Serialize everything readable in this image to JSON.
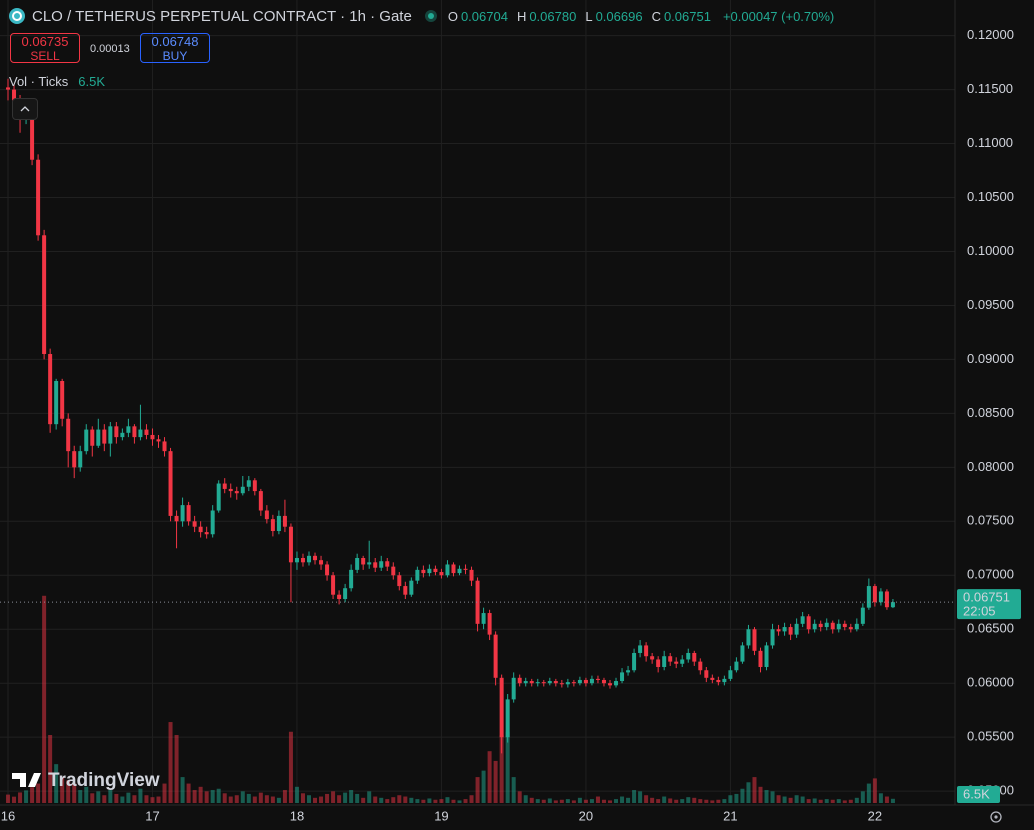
{
  "chart_data": {
    "type": "candlestick",
    "title": "CLO / TETHERUS PERPETUAL CONTRACT · 1h · Gate",
    "up_color": "#22ab94",
    "down_color": "#f23645",
    "grid": true,
    "ylim": [
      0.0489,
      0.1233
    ],
    "yticks": [
      {
        "value": 0.12,
        "label": "0.12000"
      },
      {
        "value": 0.115,
        "label": "0.11500"
      },
      {
        "value": 0.11,
        "label": "0.11000"
      },
      {
        "value": 0.105,
        "label": "0.10500"
      },
      {
        "value": 0.1,
        "label": "0.10000"
      },
      {
        "value": 0.095,
        "label": "0.09500"
      },
      {
        "value": 0.09,
        "label": "0.09000"
      },
      {
        "value": 0.085,
        "label": "0.08500"
      },
      {
        "value": 0.08,
        "label": "0.08000"
      },
      {
        "value": 0.075,
        "label": "0.07500"
      },
      {
        "value": 0.07,
        "label": "0.07000"
      },
      {
        "value": 0.065,
        "label": "0.06500"
      },
      {
        "value": 0.06,
        "label": "0.06000"
      },
      {
        "value": 0.055,
        "label": "0.05500"
      },
      {
        "value": 0.05,
        "label": "0.05000"
      }
    ],
    "xticks": [
      {
        "value": 0,
        "label": "16"
      },
      {
        "value": 24,
        "label": "17"
      },
      {
        "value": 48,
        "label": "18"
      },
      {
        "value": 72,
        "label": "19"
      },
      {
        "value": 96,
        "label": "20"
      },
      {
        "value": 120,
        "label": "21"
      },
      {
        "value": 144,
        "label": "22"
      }
    ],
    "open": [
      0.1152,
      0.115,
      0.114,
      0.1128,
      0.113,
      0.1085,
      0.1015,
      0.0905,
      0.084,
      0.088,
      0.0845,
      0.0815,
      0.08,
      0.0815,
      0.0835,
      0.082,
      0.0835,
      0.0822,
      0.0838,
      0.0828,
      0.0832,
      0.0838,
      0.0828,
      0.0835,
      0.083,
      0.0826,
      0.0824,
      0.0815,
      0.0755,
      0.075,
      0.0765,
      0.075,
      0.0745,
      0.074,
      0.0738,
      0.076,
      0.0785,
      0.078,
      0.0778,
      0.0776,
      0.0782,
      0.0788,
      0.0778,
      0.076,
      0.0752,
      0.0741,
      0.0755,
      0.0745,
      0.0712,
      0.0716,
      0.0712,
      0.0718,
      0.0714,
      0.071,
      0.07,
      0.0682,
      0.0678,
      0.0688,
      0.0705,
      0.0716,
      0.071,
      0.0712,
      0.0707,
      0.0713,
      0.0708,
      0.07,
      0.069,
      0.0682,
      0.0695,
      0.0705,
      0.0702,
      0.0706,
      0.0703,
      0.07,
      0.071,
      0.0702,
      0.0706,
      0.0705,
      0.0695,
      0.0655,
      0.0665,
      0.0645,
      0.0605,
      0.055,
      0.0585,
      0.0605,
      0.06,
      0.0602,
      0.06,
      0.0601,
      0.06,
      0.0602,
      0.06,
      0.0599,
      0.0601,
      0.06,
      0.0603,
      0.06,
      0.0604,
      0.0603,
      0.06,
      0.0598,
      0.0602,
      0.061,
      0.0612,
      0.0628,
      0.0635,
      0.0625,
      0.0622,
      0.0615,
      0.0625,
      0.062,
      0.0618,
      0.0622,
      0.0628,
      0.062,
      0.0612,
      0.0605,
      0.0603,
      0.0601,
      0.0604,
      0.0612,
      0.062,
      0.0635,
      0.065,
      0.063,
      0.0615,
      0.0635,
      0.065,
      0.0648,
      0.0652,
      0.0645,
      0.0655,
      0.0662,
      0.065,
      0.0655,
      0.0652,
      0.0656,
      0.065,
      0.0655,
      0.0652,
      0.065,
      0.0655,
      0.067,
      0.069,
      0.0675,
      0.0685,
      0.06704
    ],
    "high": [
      0.116,
      0.1155,
      0.1145,
      0.1138,
      0.1135,
      0.109,
      0.102,
      0.091,
      0.0882,
      0.0882,
      0.085,
      0.082,
      0.082,
      0.084,
      0.0838,
      0.0845,
      0.084,
      0.0842,
      0.0842,
      0.0836,
      0.0845,
      0.084,
      0.0858,
      0.084,
      0.0836,
      0.083,
      0.0828,
      0.0818,
      0.076,
      0.0772,
      0.0768,
      0.0755,
      0.075,
      0.0745,
      0.0765,
      0.0788,
      0.079,
      0.0785,
      0.0782,
      0.0792,
      0.0792,
      0.079,
      0.078,
      0.0765,
      0.0756,
      0.076,
      0.077,
      0.0748,
      0.0722,
      0.072,
      0.0722,
      0.0721,
      0.0718,
      0.0713,
      0.0703,
      0.0686,
      0.0692,
      0.071,
      0.072,
      0.0718,
      0.0732,
      0.0716,
      0.0718,
      0.0716,
      0.0712,
      0.0703,
      0.0694,
      0.0698,
      0.0708,
      0.0709,
      0.071,
      0.0709,
      0.0706,
      0.0714,
      0.0712,
      0.0709,
      0.071,
      0.0708,
      0.0698,
      0.067,
      0.0668,
      0.0648,
      0.0608,
      0.059,
      0.061,
      0.0608,
      0.0605,
      0.0604,
      0.0604,
      0.0603,
      0.0605,
      0.0604,
      0.0603,
      0.0604,
      0.0603,
      0.0606,
      0.0605,
      0.0607,
      0.0607,
      0.0605,
      0.0603,
      0.0605,
      0.0614,
      0.0616,
      0.0632,
      0.064,
      0.0638,
      0.0628,
      0.0625,
      0.063,
      0.0628,
      0.0624,
      0.0626,
      0.0632,
      0.063,
      0.0623,
      0.0615,
      0.0608,
      0.0606,
      0.0607,
      0.0616,
      0.0624,
      0.0638,
      0.0654,
      0.0652,
      0.0633,
      0.0638,
      0.0655,
      0.0654,
      0.0656,
      0.0655,
      0.066,
      0.0666,
      0.0664,
      0.0659,
      0.0658,
      0.066,
      0.0658,
      0.0659,
      0.0658,
      0.0655,
      0.066,
      0.0674,
      0.0697,
      0.0692,
      0.0688,
      0.0687,
      0.0678
    ],
    "low": [
      0.114,
      0.1135,
      0.111,
      0.1118,
      0.108,
      0.101,
      0.09,
      0.0832,
      0.0835,
      0.0838,
      0.08,
      0.079,
      0.0796,
      0.0812,
      0.081,
      0.0818,
      0.0815,
      0.081,
      0.0822,
      0.0825,
      0.0828,
      0.0822,
      0.0825,
      0.0826,
      0.082,
      0.0818,
      0.081,
      0.075,
      0.0725,
      0.0745,
      0.0746,
      0.074,
      0.0735,
      0.0734,
      0.0735,
      0.0758,
      0.0776,
      0.0772,
      0.077,
      0.0774,
      0.0778,
      0.0774,
      0.0755,
      0.0748,
      0.0736,
      0.0738,
      0.074,
      0.0675,
      0.0705,
      0.0708,
      0.0709,
      0.071,
      0.0705,
      0.0695,
      0.0678,
      0.0673,
      0.0675,
      0.0685,
      0.0702,
      0.0705,
      0.0706,
      0.0703,
      0.0704,
      0.0704,
      0.0696,
      0.0686,
      0.0678,
      0.068,
      0.0692,
      0.0698,
      0.0699,
      0.07,
      0.0697,
      0.0698,
      0.0699,
      0.07,
      0.0701,
      0.069,
      0.0648,
      0.065,
      0.064,
      0.0598,
      0.0535,
      0.0545,
      0.0582,
      0.0597,
      0.0597,
      0.0597,
      0.0597,
      0.0597,
      0.0598,
      0.0597,
      0.0596,
      0.0596,
      0.0597,
      0.0598,
      0.0597,
      0.0598,
      0.06,
      0.0597,
      0.0595,
      0.0596,
      0.06,
      0.0607,
      0.061,
      0.0624,
      0.062,
      0.0618,
      0.061,
      0.0612,
      0.0616,
      0.0614,
      0.0615,
      0.0619,
      0.0616,
      0.0608,
      0.0601,
      0.06,
      0.0598,
      0.0598,
      0.0602,
      0.061,
      0.0618,
      0.0632,
      0.0626,
      0.061,
      0.0612,
      0.0632,
      0.0644,
      0.0644,
      0.064,
      0.0642,
      0.0652,
      0.0646,
      0.0647,
      0.0648,
      0.0649,
      0.0646,
      0.0647,
      0.0649,
      0.0647,
      0.0648,
      0.0653,
      0.0668,
      0.0671,
      0.0672,
      0.0668,
      0.06696
    ],
    "close": [
      0.115,
      0.114,
      0.1128,
      0.113,
      0.1085,
      0.1015,
      0.0905,
      0.084,
      0.088,
      0.0845,
      0.0815,
      0.08,
      0.0815,
      0.0835,
      0.082,
      0.0835,
      0.0822,
      0.0838,
      0.0828,
      0.0832,
      0.0838,
      0.0828,
      0.0835,
      0.083,
      0.0826,
      0.0824,
      0.0815,
      0.0755,
      0.075,
      0.0765,
      0.075,
      0.0745,
      0.074,
      0.0738,
      0.076,
      0.0785,
      0.078,
      0.0778,
      0.0776,
      0.0782,
      0.0788,
      0.0778,
      0.076,
      0.0752,
      0.0741,
      0.0755,
      0.0745,
      0.0712,
      0.0716,
      0.0712,
      0.0718,
      0.0714,
      0.071,
      0.07,
      0.0682,
      0.0678,
      0.0688,
      0.0705,
      0.0716,
      0.071,
      0.0712,
      0.0707,
      0.0713,
      0.0708,
      0.07,
      0.069,
      0.0682,
      0.0695,
      0.0705,
      0.0702,
      0.0706,
      0.0703,
      0.07,
      0.071,
      0.0702,
      0.0706,
      0.0705,
      0.0695,
      0.0655,
      0.0665,
      0.0645,
      0.0605,
      0.055,
      0.0585,
      0.0605,
      0.06,
      0.0602,
      0.06,
      0.0601,
      0.06,
      0.0602,
      0.06,
      0.0599,
      0.0601,
      0.06,
      0.0603,
      0.06,
      0.0604,
      0.0603,
      0.06,
      0.0598,
      0.0602,
      0.061,
      0.0612,
      0.0628,
      0.0635,
      0.0625,
      0.0622,
      0.0615,
      0.0625,
      0.062,
      0.0618,
      0.0622,
      0.0628,
      0.062,
      0.0612,
      0.0605,
      0.0603,
      0.0601,
      0.0604,
      0.0612,
      0.062,
      0.0635,
      0.065,
      0.063,
      0.0615,
      0.0635,
      0.065,
      0.0648,
      0.0652,
      0.0645,
      0.0655,
      0.0662,
      0.065,
      0.0655,
      0.0652,
      0.0656,
      0.065,
      0.0655,
      0.0652,
      0.065,
      0.0655,
      0.067,
      0.069,
      0.0675,
      0.0685,
      0.06704,
      0.06751
    ],
    "volume": {
      "name": "Vol · Ticks",
      "last_label": "6.5K",
      "vlim": [
        0,
        1240000
      ],
      "values": [
        13000,
        9800,
        16300,
        19500,
        24400,
        30000,
        320000,
        105000,
        60000,
        40000,
        35000,
        30000,
        20000,
        25000,
        15000,
        18000,
        12000,
        20000,
        14000,
        10000,
        16000,
        12000,
        22000,
        12000,
        9000,
        10000,
        30000,
        125000,
        105000,
        40000,
        30000,
        20000,
        25000,
        18000,
        20000,
        22000,
        15000,
        10000,
        12000,
        18000,
        14000,
        10000,
        16000,
        12000,
        10000,
        8000,
        20000,
        110000,
        25000,
        15000,
        12000,
        8000,
        10000,
        14000,
        18000,
        12000,
        16000,
        20000,
        14000,
        8000,
        18000,
        10000,
        8000,
        6000,
        9000,
        12000,
        10000,
        8000,
        6000,
        5000,
        7000,
        5000,
        6000,
        9000,
        5000,
        4000,
        6000,
        12000,
        40000,
        50000,
        80000,
        65000,
        105000,
        110000,
        40000,
        18000,
        12000,
        8000,
        6000,
        5000,
        7000,
        4000,
        5000,
        6000,
        4000,
        8000,
        5000,
        6000,
        10000,
        5000,
        4000,
        6000,
        10000,
        8000,
        20000,
        18000,
        12000,
        8000,
        6000,
        10000,
        7000,
        5000,
        6000,
        9000,
        8000,
        6000,
        5000,
        4000,
        5000,
        6000,
        12000,
        14000,
        22000,
        32000,
        40000,
        25000,
        20000,
        18000,
        12000,
        10000,
        8000,
        12000,
        10000,
        6000,
        7000,
        5000,
        6000,
        5000,
        6000,
        4000,
        5000,
        8000,
        18000,
        30000,
        38000,
        15000,
        10000,
        6500
      ]
    },
    "countdown": "22:05"
  },
  "ui": {
    "ohlc": [
      {
        "key": "O",
        "label": "0.06704"
      },
      {
        "key": "H",
        "label": "0.06780"
      },
      {
        "key": "L",
        "label": "0.06696"
      },
      {
        "key": "C",
        "label": "0.06751"
      }
    ],
    "change": "+0.00047 (+0.70%)",
    "sell_price": "0.06735",
    "sell": "SELL",
    "spread": "0.00013",
    "buy_price": "0.06748",
    "buy": "BUY",
    "logo": "TradingView"
  }
}
